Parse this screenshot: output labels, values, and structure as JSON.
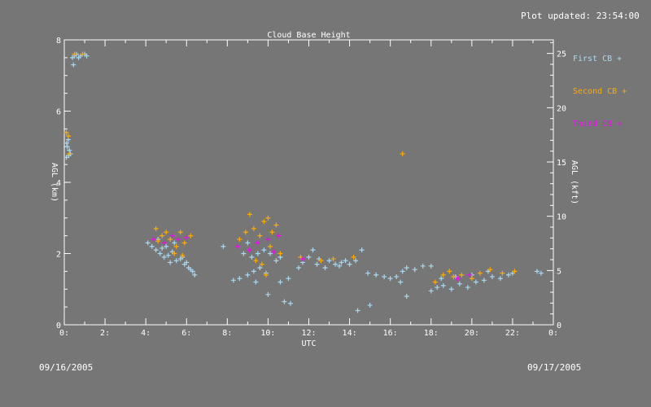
{
  "header": {
    "updated_text": "Plot updated: 23:54:00"
  },
  "footer": {
    "start_date": "09/16/2005",
    "end_date": "09/17/2005"
  },
  "colors": {
    "background": "#767676",
    "first": "#a8d8f0",
    "second": "#ffaa00",
    "third": "#ff00ff",
    "axis": "#ffffff"
  },
  "chart_data": {
    "type": "scatter",
    "title": "Cloud Base Height",
    "xlabel": "UTC",
    "ylabel": "AGL (km)",
    "y2label": "AGL (kft)",
    "xlim": [
      0,
      24
    ],
    "ylim": [
      0,
      8
    ],
    "y2lim": [
      0,
      26.25
    ],
    "xticks": [
      0,
      2,
      4,
      6,
      8,
      10,
      12,
      14,
      16,
      18,
      20,
      22,
      24
    ],
    "xticklabels": [
      "0:",
      "2:",
      "4:",
      "6:",
      "8:",
      "10:",
      "12:",
      "14:",
      "16:",
      "18:",
      "20:",
      "22:",
      "0:"
    ],
    "yticks": [
      0,
      2,
      4,
      6,
      8
    ],
    "y2ticks": [
      0,
      5,
      10,
      15,
      20,
      25
    ],
    "legend_position": "right",
    "series": [
      {
        "name": "First CB +",
        "color": "#a8d8f0",
        "points": [
          [
            0.1,
            4.7
          ],
          [
            0.15,
            5.0
          ],
          [
            0.2,
            5.2
          ],
          [
            0.25,
            4.9
          ],
          [
            0.3,
            4.8
          ],
          [
            0.12,
            5.1
          ],
          [
            0.22,
            4.75
          ],
          [
            0.4,
            7.5
          ],
          [
            0.5,
            7.55
          ],
          [
            0.6,
            7.6
          ],
          [
            0.7,
            7.5
          ],
          [
            0.8,
            7.55
          ],
          [
            1.0,
            7.6
          ],
          [
            1.1,
            7.55
          ],
          [
            0.45,
            7.3
          ],
          [
            4.1,
            2.3
          ],
          [
            4.3,
            2.2
          ],
          [
            4.5,
            2.1
          ],
          [
            4.7,
            2.0
          ],
          [
            4.9,
            1.9
          ],
          [
            5.1,
            1.95
          ],
          [
            5.3,
            2.05
          ],
          [
            5.5,
            1.8
          ],
          [
            5.7,
            1.85
          ],
          [
            5.9,
            1.7
          ],
          [
            6.1,
            1.6
          ],
          [
            6.3,
            1.5
          ],
          [
            6.4,
            1.4
          ],
          [
            4.6,
            2.4
          ],
          [
            5.0,
            2.2
          ],
          [
            5.4,
            2.3
          ],
          [
            5.8,
            1.9
          ],
          [
            6.0,
            1.75
          ],
          [
            4.8,
            2.15
          ],
          [
            5.2,
            1.75
          ],
          [
            6.2,
            1.55
          ],
          [
            7.8,
            2.2
          ],
          [
            8.3,
            1.25
          ],
          [
            8.6,
            1.3
          ],
          [
            9.0,
            1.4
          ],
          [
            9.3,
            1.5
          ],
          [
            9.5,
            2.0
          ],
          [
            9.2,
            1.9
          ],
          [
            9.8,
            2.1
          ],
          [
            10.1,
            2.0
          ],
          [
            10.4,
            1.8
          ],
          [
            10.6,
            1.9
          ],
          [
            9.6,
            1.6
          ],
          [
            9.9,
            1.45
          ],
          [
            10.0,
            0.85
          ],
          [
            10.8,
            0.65
          ],
          [
            11.1,
            0.6
          ],
          [
            10.6,
            1.2
          ],
          [
            11.0,
            1.3
          ],
          [
            8.8,
            2.0
          ],
          [
            9.0,
            2.3
          ],
          [
            9.4,
            1.2
          ],
          [
            11.5,
            1.6
          ],
          [
            11.7,
            1.75
          ],
          [
            12.0,
            1.9
          ],
          [
            12.2,
            2.1
          ],
          [
            12.4,
            1.7
          ],
          [
            12.8,
            1.6
          ],
          [
            13.0,
            1.8
          ],
          [
            13.3,
            1.7
          ],
          [
            13.6,
            1.75
          ],
          [
            13.8,
            1.8
          ],
          [
            14.0,
            1.7
          ],
          [
            14.3,
            1.8
          ],
          [
            14.6,
            2.1
          ],
          [
            12.5,
            1.85
          ],
          [
            13.5,
            1.65
          ],
          [
            14.4,
            0.4
          ],
          [
            15.0,
            0.55
          ],
          [
            14.9,
            1.45
          ],
          [
            15.3,
            1.4
          ],
          [
            15.7,
            1.35
          ],
          [
            16.0,
            1.3
          ],
          [
            16.3,
            1.35
          ],
          [
            16.6,
            1.5
          ],
          [
            16.8,
            1.6
          ],
          [
            17.2,
            1.55
          ],
          [
            17.6,
            1.65
          ],
          [
            18.0,
            1.65
          ],
          [
            16.5,
            1.2
          ],
          [
            16.8,
            0.8
          ],
          [
            18.0,
            0.95
          ],
          [
            18.3,
            1.05
          ],
          [
            18.6,
            1.1
          ],
          [
            19.0,
            1.0
          ],
          [
            19.4,
            1.15
          ],
          [
            19.8,
            1.05
          ],
          [
            20.2,
            1.2
          ],
          [
            20.6,
            1.25
          ],
          [
            21.0,
            1.35
          ],
          [
            21.4,
            1.3
          ],
          [
            21.8,
            1.4
          ],
          [
            22.0,
            1.45
          ],
          [
            23.2,
            1.5
          ],
          [
            23.4,
            1.45
          ],
          [
            18.5,
            1.3
          ],
          [
            19.2,
            1.35
          ],
          [
            20.0,
            1.4
          ],
          [
            20.8,
            1.5
          ]
        ]
      },
      {
        "name": "Second CB +",
        "color": "#ffaa00",
        "points": [
          [
            0.1,
            5.4
          ],
          [
            0.2,
            5.3
          ],
          [
            0.25,
            4.8
          ],
          [
            0.5,
            7.6
          ],
          [
            0.9,
            7.6
          ],
          [
            4.5,
            2.7
          ],
          [
            4.8,
            2.5
          ],
          [
            5.0,
            2.6
          ],
          [
            5.2,
            2.4
          ],
          [
            5.5,
            2.2
          ],
          [
            5.7,
            2.6
          ],
          [
            5.9,
            2.3
          ],
          [
            6.2,
            2.5
          ],
          [
            4.6,
            2.35
          ],
          [
            5.4,
            2.0
          ],
          [
            5.8,
            1.95
          ],
          [
            8.6,
            2.4
          ],
          [
            8.9,
            2.6
          ],
          [
            9.1,
            3.1
          ],
          [
            9.3,
            2.7
          ],
          [
            9.6,
            2.5
          ],
          [
            9.8,
            2.9
          ],
          [
            10.0,
            3.0
          ],
          [
            10.2,
            2.6
          ],
          [
            10.4,
            2.8
          ],
          [
            9.4,
            1.8
          ],
          [
            9.7,
            1.7
          ],
          [
            9.9,
            1.4
          ],
          [
            10.1,
            2.2
          ],
          [
            10.6,
            2.0
          ],
          [
            11.6,
            1.9
          ],
          [
            12.6,
            1.8
          ],
          [
            13.2,
            1.85
          ],
          [
            14.2,
            1.9
          ],
          [
            16.6,
            4.8
          ],
          [
            18.2,
            1.2
          ],
          [
            18.6,
            1.4
          ],
          [
            19.1,
            1.35
          ],
          [
            19.5,
            1.4
          ],
          [
            20.0,
            1.3
          ],
          [
            20.4,
            1.45
          ],
          [
            20.9,
            1.55
          ],
          [
            21.5,
            1.45
          ],
          [
            22.1,
            1.5
          ],
          [
            18.9,
            1.5
          ]
        ]
      },
      {
        "name": "Third CB +",
        "color": "#ff00ff",
        "points": [
          [
            4.4,
            2.4
          ],
          [
            4.9,
            2.3
          ],
          [
            5.3,
            2.5
          ],
          [
            5.6,
            2.4
          ],
          [
            6.0,
            2.45
          ],
          [
            8.5,
            2.2
          ],
          [
            9.1,
            2.1
          ],
          [
            9.5,
            2.3
          ],
          [
            10.0,
            2.4
          ],
          [
            10.5,
            2.5
          ],
          [
            10.3,
            2.05
          ],
          [
            11.7,
            1.85
          ],
          [
            19.3,
            1.3
          ],
          [
            19.9,
            1.4
          ]
        ]
      }
    ]
  }
}
